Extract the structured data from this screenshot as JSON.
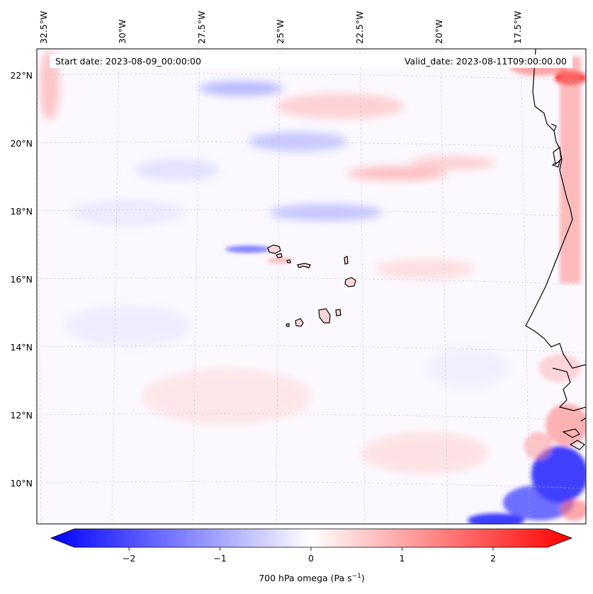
{
  "map": {
    "start_date": "Start date: 2023-08-09_00:00:00",
    "valid_date": "Valid_date: 2023-08-11T09:00:00.00",
    "lon_labels": [
      "32.5°W",
      "30°W",
      "27.5°W",
      "25°W",
      "22.5°W",
      "20°W",
      "17.5°W"
    ],
    "lat_labels": [
      "22°N",
      "20°N",
      "18°N",
      "16°N",
      "14°N",
      "12°N",
      "10°N"
    ],
    "variable": "700 hPa omega"
  },
  "colorbar": {
    "label_prefix": "700 hPa omega (Pa s",
    "label_exp": "−1",
    "label_suffix": ")",
    "ticks": [
      "−2",
      "−1",
      "0",
      "1",
      "2"
    ],
    "tick_values": [
      -2,
      -1,
      0,
      1,
      2
    ],
    "range": [
      -2.6,
      2.6
    ],
    "colormap": "bwr",
    "color_low": "#0000ff",
    "color_mid": "#ffffff",
    "color_high": "#ff0000"
  },
  "colors": {
    "coastline": "#000000",
    "gridline": "#c8c8c8",
    "background": "#fbf9ff"
  }
}
